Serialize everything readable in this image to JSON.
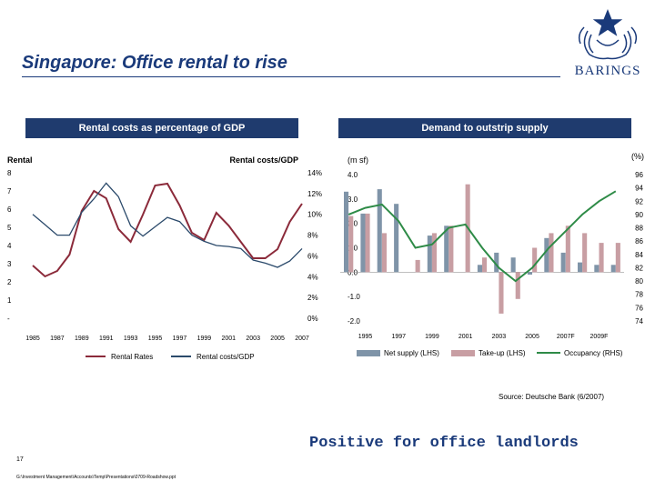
{
  "header": {
    "title": "Singapore: Office rental to rise",
    "brand": "BARINGS"
  },
  "colors": {
    "navy": "#1f3b6e",
    "rental_rates": "#8b2a3a",
    "rental_gdp": "#2b4a6b",
    "net_supply": "#7f94a8",
    "take_up": "#c89ea3",
    "occupancy": "#2e8b47"
  },
  "chart_data": [
    {
      "type": "line",
      "banner": "Rental costs as percentage of GDP",
      "left_axis_label": "Rental",
      "right_axis_label": "Rental costs/GDP",
      "left_ticks": [
        "8",
        "7",
        "6",
        "5",
        "4",
        "3",
        "2",
        "1",
        "-"
      ],
      "left_ylim": [
        0,
        8
      ],
      "right_ticks": [
        "14%",
        "12%",
        "10%",
        "8%",
        "6%",
        "4%",
        "2%",
        "0%"
      ],
      "right_ylim": [
        0,
        14
      ],
      "x_ticks": [
        "1985",
        "1987",
        "1989",
        "1991",
        "1993",
        "1995",
        "1997",
        "1999",
        "2001",
        "2003",
        "2005",
        "2007"
      ],
      "x": [
        1985,
        1986,
        1987,
        1988,
        1989,
        1990,
        1991,
        1992,
        1993,
        1994,
        1995,
        1996,
        1997,
        1998,
        1999,
        2000,
        2001,
        2002,
        2003,
        2004,
        2005,
        2006,
        2007
      ],
      "series": [
        {
          "name": "Rental Rates",
          "axis": "left",
          "values": [
            2.9,
            2.3,
            2.6,
            3.5,
            5.9,
            7.0,
            6.6,
            4.9,
            4.2,
            5.7,
            7.3,
            7.4,
            6.2,
            4.7,
            4.3,
            5.8,
            5.1,
            4.2,
            3.3,
            3.3,
            3.8,
            5.3,
            6.3
          ]
        },
        {
          "name": "Rental costs/GDP",
          "axis": "right",
          "values": [
            10.0,
            9.0,
            8.0,
            8.0,
            10.2,
            11.5,
            13.0,
            11.7,
            8.9,
            7.9,
            8.8,
            9.7,
            9.3,
            8.0,
            7.4,
            7.0,
            6.9,
            6.7,
            5.6,
            5.3,
            4.9,
            5.5,
            6.7
          ]
        }
      ]
    },
    {
      "type": "bar",
      "banner": "Demand to outstrip supply",
      "left_axis_label": "(m sf)",
      "right_axis_label": "(%)",
      "left_ticks": [
        "4.0",
        "3.0",
        "2.0",
        "1.0",
        "0.0",
        "-1.0",
        "-2.0"
      ],
      "left_ylim": [
        -2,
        4
      ],
      "right_ticks": [
        "96",
        "94",
        "92",
        "90",
        "88",
        "86",
        "84",
        "82",
        "80",
        "78",
        "76",
        "74"
      ],
      "right_ylim": [
        74,
        96
      ],
      "x_ticks": [
        "1995",
        "1997",
        "1999",
        "2001",
        "2003",
        "2005",
        "2007F",
        "2009F"
      ],
      "categories": [
        "1994",
        "1995",
        "1996",
        "1997",
        "1998",
        "1999",
        "2000",
        "2001",
        "2002",
        "2003",
        "2004",
        "2005",
        "2006",
        "2007F",
        "2008F",
        "2009F",
        "2010F"
      ],
      "series": [
        {
          "name": "Net supply (LHS)",
          "type": "bar",
          "values": [
            3.3,
            2.4,
            3.4,
            2.8,
            0.0,
            1.5,
            1.9,
            0.0,
            0.3,
            0.8,
            0.6,
            -0.1,
            1.4,
            0.8,
            0.4,
            0.3,
            0.3
          ]
        },
        {
          "name": "Take-up (LHS)",
          "type": "bar",
          "values": [
            2.3,
            2.4,
            1.6,
            0.0,
            0.5,
            1.6,
            1.9,
            3.6,
            0.6,
            -1.7,
            -1.1,
            1.0,
            1.6,
            1.9,
            1.6,
            1.2,
            1.2
          ]
        },
        {
          "name": "Occupancy (RHS)",
          "type": "line",
          "values": [
            90.0,
            91.0,
            91.5,
            89.0,
            85.0,
            85.5,
            88.0,
            88.5,
            85.0,
            82.0,
            80.0,
            82.0,
            85.0,
            87.5,
            90.0,
            92.0,
            93.5
          ]
        }
      ]
    }
  ],
  "footer": {
    "source": "Source: Deutsche Bank (6/2007)",
    "tagline": "Positive for office landlords",
    "page_number": "17",
    "file_path": "G:\\Investment Management\\Accounts\\Temp\\Presentations\\0709-Roadshow.ppt"
  }
}
